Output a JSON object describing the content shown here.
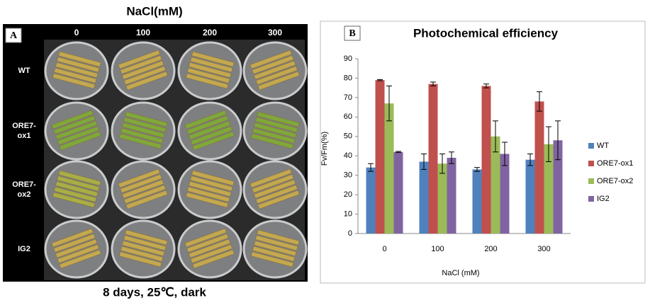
{
  "panel_a": {
    "label": "A",
    "title": "NaCl(mM)",
    "columns": [
      "0",
      "100",
      "200",
      "300"
    ],
    "rows": [
      "WT",
      "ORE7-ox1",
      "ORE7-ox2",
      "IG2"
    ],
    "caption": "8 days, 25℃, dark"
  },
  "chart_data": {
    "type": "bar",
    "panel_label": "B",
    "title": "Photochemical efficiency",
    "x_label": "NaCl (mM)",
    "y_label": "Fv/Fm(%)",
    "categories": [
      "0",
      "100",
      "200",
      "300"
    ],
    "series": [
      {
        "name": "WT",
        "color": "#4f81bd",
        "values": [
          34,
          37,
          33,
          38
        ],
        "errors": [
          2,
          4,
          1,
          3
        ]
      },
      {
        "name": "ORE7-ox1",
        "color": "#c0504d",
        "values": [
          79,
          77,
          76,
          68
        ],
        "errors": [
          0.3,
          1,
          1,
          5
        ]
      },
      {
        "name": "ORE7-ox2",
        "color": "#9bbb59",
        "values": [
          67,
          36,
          50,
          46
        ],
        "errors": [
          9,
          5,
          8,
          9
        ]
      },
      {
        "name": "IG2",
        "color": "#8064a2",
        "values": [
          42,
          39,
          41,
          48
        ],
        "errors": [
          0.3,
          3,
          6,
          10
        ]
      }
    ],
    "ylim": [
      0,
      90
    ],
    "yticks": [
      0,
      10,
      20,
      30,
      40,
      50,
      60,
      70,
      80,
      90
    ],
    "grid": false,
    "legend": "right"
  }
}
